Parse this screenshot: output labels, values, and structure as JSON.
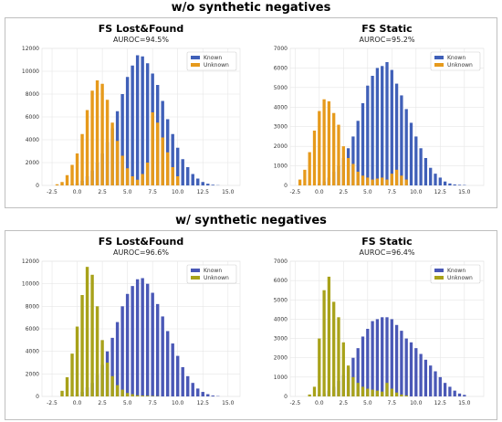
{
  "sections": [
    {
      "title": "w/o synthetic negatives"
    },
    {
      "title": "w/ synthetic negatives"
    }
  ],
  "colors": {
    "known_top": "#4060b8",
    "unknown_top": "#e69a1c",
    "known_bottom": "#4a58b6",
    "unknown_bottom": "#a8a21a"
  },
  "chart_data": [
    {
      "type": "bar",
      "title": "FS Lost&Found",
      "subtitle": "AUROC=94.5%",
      "xlim": [
        -3.5,
        16.2
      ],
      "ylim": [
        0,
        12000
      ],
      "xticks": [
        "-2.5",
        "0.0",
        "2.5",
        "5.0",
        "7.5",
        "10.0",
        "12.5",
        "15.0"
      ],
      "xtick_values": [
        -2.5,
        0,
        2.5,
        5,
        7.5,
        10,
        12.5,
        15
      ],
      "yticks": [
        "0",
        "2000",
        "4000",
        "6000",
        "8000",
        "10000",
        "12000"
      ],
      "ytick_values": [
        0,
        2000,
        4000,
        6000,
        8000,
        10000,
        12000
      ],
      "legend_position": "top-right",
      "grid": true,
      "series": [
        {
          "name": "Known",
          "color_key": "known_top",
          "x": [
            -0.5,
            0,
            0.5,
            1,
            1.5,
            2,
            2.5,
            3,
            3.5,
            4,
            4.5,
            5,
            5.5,
            6,
            6.5,
            7,
            7.5,
            8,
            8.5,
            9,
            9.5,
            10,
            10.5,
            11,
            11.5,
            12,
            12.5,
            13,
            13.5,
            14
          ],
          "values": [
            100,
            200,
            400,
            800,
            1300,
            2000,
            2800,
            3800,
            5000,
            6500,
            8000,
            9500,
            10500,
            11400,
            11300,
            10700,
            9800,
            8800,
            7400,
            5800,
            4500,
            3300,
            2300,
            1600,
            1000,
            600,
            300,
            150,
            60,
            20
          ]
        },
        {
          "name": "Unknown",
          "color_key": "unknown_top",
          "x": [
            -2,
            -1.5,
            -1,
            -0.5,
            0,
            0.5,
            1,
            1.5,
            2,
            2.5,
            3,
            3.5,
            4,
            4.5,
            5,
            5.5,
            6,
            6.5,
            7,
            7.5,
            8,
            8.5,
            9,
            9.5,
            10
          ],
          "values": [
            100,
            300,
            900,
            1800,
            2800,
            4500,
            6600,
            8300,
            9200,
            8900,
            7500,
            5500,
            3900,
            2600,
            1500,
            800,
            500,
            1000,
            2000,
            6400,
            5500,
            4200,
            2900,
            1600,
            800
          ]
        }
      ]
    },
    {
      "type": "bar",
      "title": "FS Static",
      "subtitle": "AUROC=95.2%",
      "xlim": [
        -3.0,
        17.0
      ],
      "ylim": [
        0,
        7000
      ],
      "xticks": [
        "-2.5",
        "0.0",
        "2.5",
        "5.0",
        "7.5",
        "10.0",
        "12.5",
        "15.0"
      ],
      "xtick_values": [
        -2.5,
        0,
        2.5,
        5,
        7.5,
        10,
        12.5,
        15
      ],
      "yticks": [
        "0",
        "1000",
        "2000",
        "3000",
        "4000",
        "5000",
        "6000",
        "7000"
      ],
      "ytick_values": [
        0,
        1000,
        2000,
        3000,
        4000,
        5000,
        6000,
        7000
      ],
      "legend_position": "top-right",
      "grid": true,
      "series": [
        {
          "name": "Known",
          "color_key": "known_top",
          "x": [
            0,
            0.5,
            1,
            1.5,
            2,
            2.5,
            3,
            3.5,
            4,
            4.5,
            5,
            5.5,
            6,
            6.5,
            7,
            7.5,
            8,
            8.5,
            9,
            9.5,
            10,
            10.5,
            11,
            11.5,
            12,
            12.5,
            13,
            13.5,
            14,
            14.5,
            15
          ],
          "values": [
            100,
            200,
            400,
            700,
            1000,
            1400,
            1900,
            2500,
            3300,
            4200,
            5100,
            5600,
            6000,
            6100,
            6300,
            5900,
            5200,
            4600,
            3900,
            3200,
            2500,
            1900,
            1400,
            900,
            600,
            400,
            200,
            100,
            50,
            30,
            20
          ]
        },
        {
          "name": "Unknown",
          "color_key": "unknown_top",
          "x": [
            -2,
            -1.5,
            -1,
            -0.5,
            0,
            0.5,
            1,
            1.5,
            2,
            2.5,
            3,
            3.5,
            4,
            4.5,
            5,
            5.5,
            6,
            6.5,
            7,
            7.5,
            8,
            8.5,
            9
          ],
          "values": [
            300,
            800,
            1700,
            2800,
            3800,
            4400,
            4300,
            3700,
            3100,
            2000,
            1400,
            1100,
            700,
            500,
            400,
            300,
            350,
            400,
            300,
            600,
            800,
            500,
            300
          ]
        }
      ]
    },
    {
      "type": "bar",
      "title": "FS Lost&Found",
      "subtitle": "AUROC=96.6%",
      "xlim": [
        -3.5,
        16.2
      ],
      "ylim": [
        0,
        12000
      ],
      "xticks": [
        "-2.5",
        "0.0",
        "2.5",
        "5.0",
        "7.5",
        "10.0",
        "12.5",
        "15.0"
      ],
      "xtick_values": [
        -2.5,
        0,
        2.5,
        5,
        7.5,
        10,
        12.5,
        15
      ],
      "yticks": [
        "0",
        "2000",
        "4000",
        "6000",
        "8000",
        "10000",
        "12000"
      ],
      "ytick_values": [
        0,
        2000,
        4000,
        6000,
        8000,
        10000,
        12000
      ],
      "legend_position": "top-right",
      "grid": true,
      "series": [
        {
          "name": "Known",
          "color_key": "known_bottom",
          "x": [
            -0.5,
            0,
            0.5,
            1,
            1.5,
            2,
            2.5,
            3,
            3.5,
            4,
            4.5,
            5,
            5.5,
            6,
            6.5,
            7,
            7.5,
            8,
            8.5,
            9,
            9.5,
            10,
            10.5,
            11,
            11.5,
            12,
            12.5,
            13,
            13.5,
            14
          ],
          "values": [
            100,
            200,
            400,
            800,
            1200,
            1900,
            2800,
            4000,
            5200,
            6600,
            8000,
            9100,
            9800,
            10400,
            10500,
            10000,
            9200,
            8200,
            7100,
            5800,
            4700,
            3600,
            2600,
            1800,
            1200,
            700,
            400,
            200,
            80,
            30
          ]
        },
        {
          "name": "Unknown",
          "color_key": "unknown_bottom",
          "x": [
            -1.5,
            -1,
            -0.5,
            0,
            0.5,
            1,
            1.5,
            2,
            2.5,
            3,
            3.5,
            4,
            4.5,
            5,
            5.5,
            6,
            6.5,
            7,
            7.5,
            8
          ],
          "values": [
            500,
            1700,
            3800,
            6200,
            9000,
            11500,
            10800,
            8000,
            5000,
            3000,
            1800,
            1000,
            600,
            300,
            200,
            100,
            80,
            60,
            40,
            20
          ]
        }
      ]
    },
    {
      "type": "bar",
      "title": "FS Static",
      "subtitle": "AUROC=96.4%",
      "xlim": [
        -3.0,
        17.0
      ],
      "ylim": [
        0,
        7000
      ],
      "xticks": [
        "-2.5",
        "0.0",
        "2.5",
        "5.0",
        "7.5",
        "10.0",
        "12.5",
        "15.0"
      ],
      "xtick_values": [
        -2.5,
        0,
        2.5,
        5,
        7.5,
        10,
        12.5,
        15
      ],
      "yticks": [
        "0",
        "1000",
        "2000",
        "3000",
        "4000",
        "5000",
        "6000",
        "7000"
      ],
      "ytick_values": [
        0,
        1000,
        2000,
        3000,
        4000,
        5000,
        6000,
        7000
      ],
      "legend_position": "top-right",
      "grid": true,
      "series": [
        {
          "name": "Known",
          "color_key": "known_bottom",
          "x": [
            0,
            0.5,
            1,
            1.5,
            2,
            2.5,
            3,
            3.5,
            4,
            4.5,
            5,
            5.5,
            6,
            6.5,
            7,
            7.5,
            8,
            8.5,
            9,
            9.5,
            10,
            10.5,
            11,
            11.5,
            12,
            12.5,
            13,
            13.5,
            14,
            14.5,
            15
          ],
          "values": [
            100,
            150,
            300,
            500,
            800,
            1100,
            1500,
            2000,
            2500,
            3100,
            3500,
            3900,
            4000,
            4100,
            4100,
            4000,
            3700,
            3400,
            3000,
            2800,
            2500,
            2200,
            1900,
            1600,
            1300,
            1000,
            700,
            500,
            300,
            150,
            80
          ]
        },
        {
          "name": "Unknown",
          "color_key": "unknown_bottom",
          "x": [
            -1,
            -0.5,
            0,
            0.5,
            1,
            1.5,
            2,
            2.5,
            3,
            3.5,
            4,
            4.5,
            5,
            5.5,
            6,
            6.5,
            7,
            7.5,
            8,
            8.5,
            9
          ],
          "values": [
            100,
            500,
            3000,
            5500,
            6200,
            4900,
            4100,
            2800,
            1600,
            1000,
            700,
            500,
            400,
            350,
            300,
            250,
            700,
            400,
            200,
            100,
            50
          ]
        }
      ]
    }
  ]
}
